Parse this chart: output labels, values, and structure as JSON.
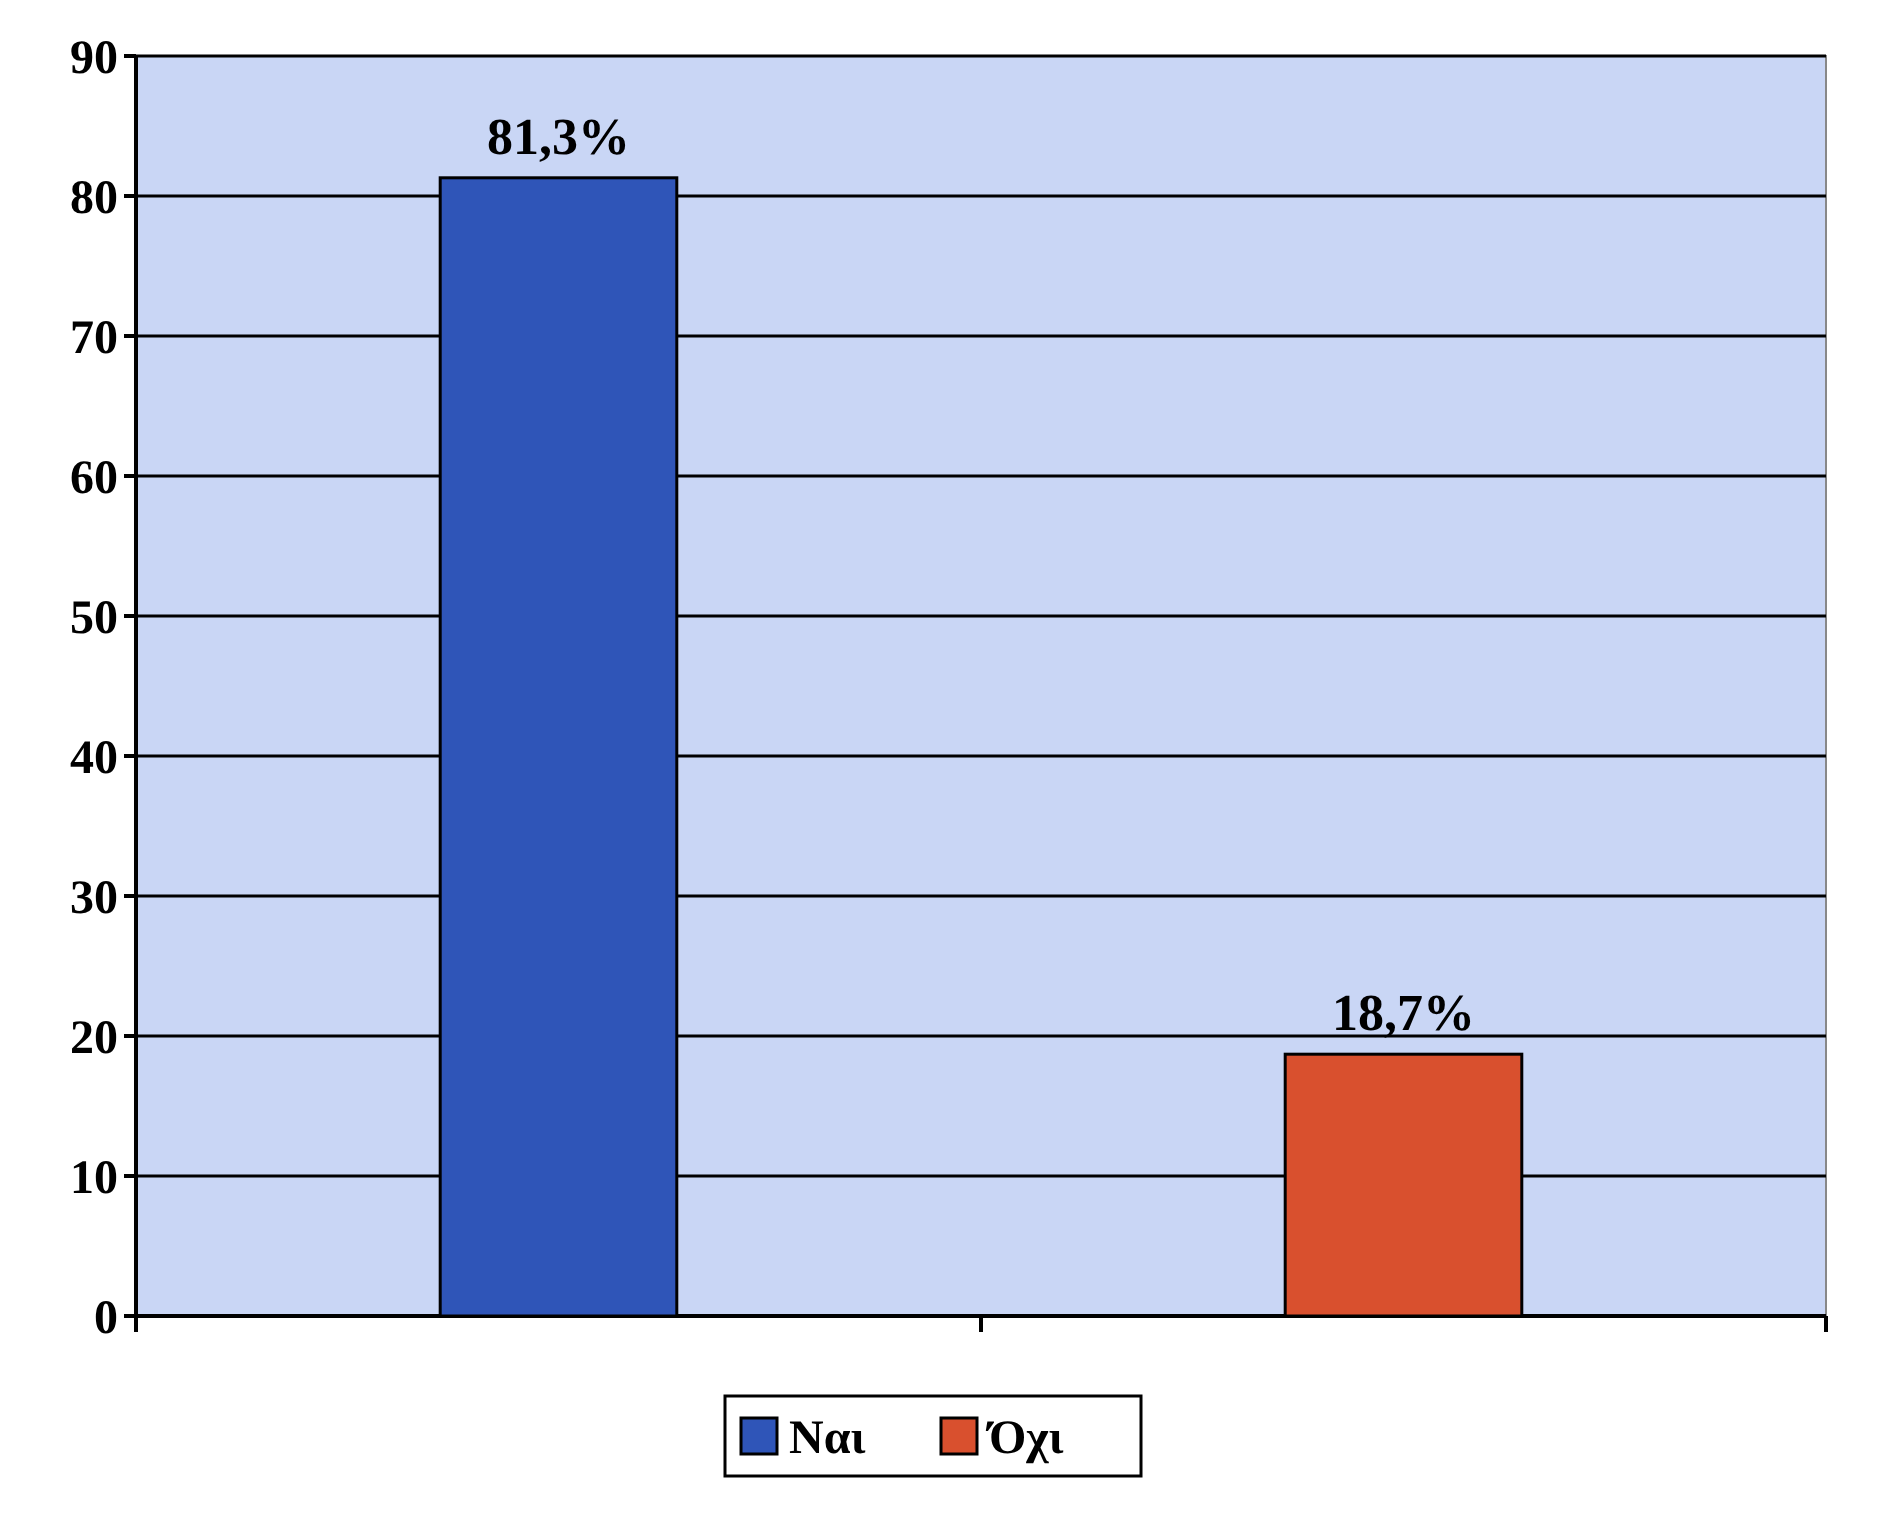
{
  "chart_data": {
    "type": "bar",
    "categories": [
      null,
      null
    ],
    "series": [
      {
        "name": "Ναι",
        "color": "#2f55b8",
        "values": [
          81.3,
          null
        ],
        "value_labels": [
          "81,3%",
          null
        ]
      },
      {
        "name": "Όχι",
        "color": "#d9502e",
        "values": [
          null,
          18.7
        ],
        "value_labels": [
          null,
          "18,7%"
        ]
      }
    ],
    "ylim": [
      0,
      90
    ],
    "yticks": [
      0,
      10,
      20,
      30,
      40,
      50,
      60,
      70,
      80,
      90
    ],
    "grid": "y",
    "legend": "bottom"
  }
}
